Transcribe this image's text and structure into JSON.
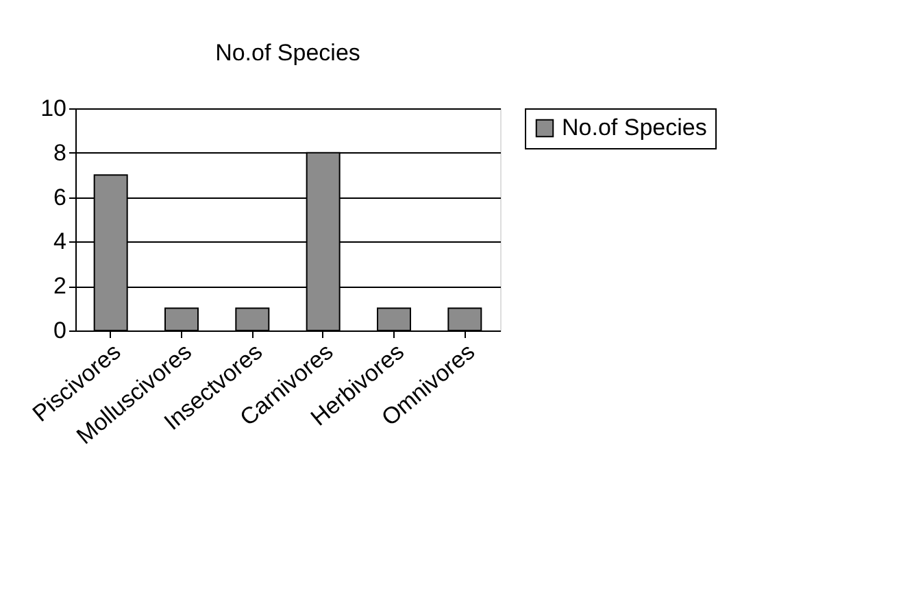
{
  "chart_data": {
    "type": "bar",
    "title": "No.of Species",
    "categories": [
      "Piscivores",
      "Molluscivores",
      "Insectvores",
      "Carnivores",
      "Herbivores",
      "Omnivores"
    ],
    "series": [
      {
        "name": "No.of Species",
        "color": "#8c8c8c",
        "values": [
          7,
          1,
          1,
          8,
          1,
          1
        ]
      }
    ],
    "ylim": [
      0,
      10
    ],
    "yticks": [
      0,
      2,
      4,
      6,
      8,
      10
    ],
    "grid": "y",
    "legend": "right"
  }
}
